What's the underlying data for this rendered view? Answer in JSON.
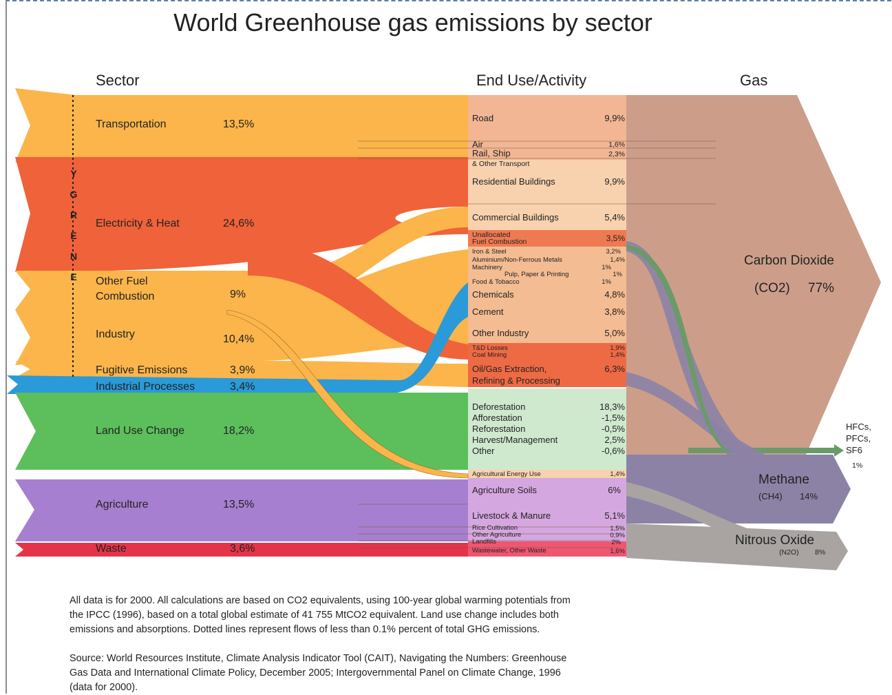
{
  "title": "World Greenhouse gas emissions by sector",
  "headers": {
    "sector": "Sector",
    "end_use": "End Use/Activity",
    "gas": "Gas"
  },
  "energy_letters": [
    "Y",
    "G",
    "R",
    "E",
    "N",
    "E"
  ],
  "sectors": [
    {
      "label": "Transportation",
      "value": "13,5%",
      "color": "#fbb54a"
    },
    {
      "label": "Electricity & Heat",
      "value": "24,6%",
      "color": "#f0623a"
    },
    {
      "label": "Other Fuel",
      "label2": "Combustion",
      "value": "9%",
      "color": "#fbb54a"
    },
    {
      "label": "Industry",
      "value": "10,4%",
      "color": "#fbb54a"
    },
    {
      "label": "Fugitive Emissions",
      "value": "3,9%",
      "color": "#fbb54a"
    },
    {
      "label": "Industrial Processes",
      "value": "3,4%",
      "color": "#2a9ad8"
    },
    {
      "label": "Land Use Change",
      "value": "18,2%",
      "color": "#5cbf5c"
    },
    {
      "label": "Agriculture",
      "value": "13,5%",
      "color": "#a77fd0"
    },
    {
      "label": "Waste",
      "value": "3,6%",
      "color": "#e4344a"
    }
  ],
  "end_uses": [
    {
      "label": "Road",
      "value": "9,9%"
    },
    {
      "label": "Air",
      "value": "1,6%"
    },
    {
      "label": "Rail, Ship",
      "value": "2,3%"
    },
    {
      "label": "& Other Transport",
      "value": ""
    },
    {
      "label": "Residential Buildings",
      "value": "9,9%"
    },
    {
      "label": "Commercial Buildings",
      "value": "5,4%"
    },
    {
      "label": "Unallocated",
      "value": "3,5%"
    },
    {
      "label": "Fuel Combustion",
      "value": ""
    },
    {
      "label": "Iron & Steel",
      "value": "3,2%"
    },
    {
      "label": "Aluminium/Non-Ferrous Metals",
      "value": "1,4%"
    },
    {
      "label": "Machinery",
      "value": "1%"
    },
    {
      "label": "Pulp, Paper & Printing",
      "value": "1%"
    },
    {
      "label": "Food & Tobacco",
      "value": "1%"
    },
    {
      "label": "Chemicals",
      "value": "4,8%"
    },
    {
      "label": "Cement",
      "value": "3,8%"
    },
    {
      "label": "Other Industry",
      "value": "5,0%"
    },
    {
      "label": "T&D Losses",
      "value": "1,9%"
    },
    {
      "label": "Coal Mining",
      "value": "1,4%"
    },
    {
      "label": "Oil/Gas Extraction,",
      "value": "6,3%"
    },
    {
      "label": "Refining & Processing",
      "value": ""
    },
    {
      "label": "Deforestation",
      "value": "18,3%"
    },
    {
      "label": "Afforestation",
      "value": "-1,5%"
    },
    {
      "label": "Reforestation",
      "value": "-0,5%"
    },
    {
      "label": "Harvest/Management",
      "value": "2,5%"
    },
    {
      "label": "Other",
      "value": "-0,6%"
    },
    {
      "label": "Agricultural Energy Use",
      "value": "1,4%"
    },
    {
      "label": "Agriculture Soils",
      "value": "6%"
    },
    {
      "label": "Livestock & Manure",
      "value": "5,1%"
    },
    {
      "label": "Rice Cultivation",
      "value": "1,5%"
    },
    {
      "label": "Other Agriculture",
      "value": "0,9%"
    },
    {
      "label": "Landfills",
      "value": "2%"
    },
    {
      "label": "Wastewater, Other Waste",
      "value": "1,6%"
    }
  ],
  "gases": {
    "co2": {
      "label": "Carbon Dioxide",
      "formula": "(CO2)",
      "value": "77%",
      "color": "#cc9e8a"
    },
    "ch4": {
      "label": "Methane",
      "formula": "(CH4)",
      "value": "14%",
      "color": "#8c82a6"
    },
    "n2o": {
      "label": "Nitrous Oxide",
      "formula": "(N2O)",
      "value": "8%",
      "color": "#a9a4a2"
    },
    "hfc": {
      "line1": "HFCs,",
      "line2": "PFCs,",
      "line3": "SF6",
      "value": "1%",
      "color": "#6a9a6a"
    }
  },
  "notes": {
    "para1_line1": "All data is for 2000. All calculations are based on CO2 equivalents, using 100-year global warming potentials from",
    "para1_line2": "the IPCC (1996), based on a total global estimate of 41 755 MtCO2 equivalent. Land use change includes both",
    "para1_line3": "emissions and absorptions. Dotted lines represent flows of less than 0.1% percent of total GHG emissions.",
    "para2_line1": "Source: World Resources Institute, Climate Analysis Indicator Tool (CAIT), Navigating the Numbers: Greenhouse",
    "para2_line2": "Gas Data and International Climate Policy, December 2005; Intergovernmental Panel on Climate Change, 1996",
    "para2_line3": "(data for 2000)."
  }
}
